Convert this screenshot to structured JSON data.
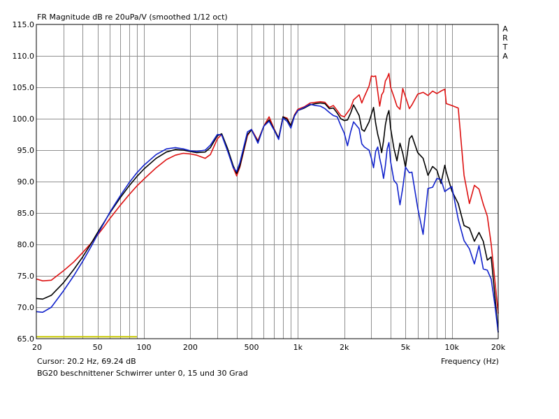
{
  "title": "FR Magnitude dB re 20uPa/V (smoothed 1/12 oct)",
  "watermark": [
    "A",
    "R",
    "T",
    "A"
  ],
  "cursor_text": "Cursor: 20.2 Hz, 69.24 dB",
  "caption": "BG20 beschnittener Schwirrer unter 0, 15 und 30 Grad",
  "chart_data": {
    "type": "line",
    "title": "FR Magnitude dB re 20uPa/V (smoothed 1/12 oct)",
    "xlabel": "Frequency (Hz)",
    "ylabel": "",
    "xscale": "log",
    "xlim": [
      20,
      20000
    ],
    "ylim": [
      65,
      115
    ],
    "grid": true,
    "x_ticks": [
      20,
      50,
      100,
      200,
      500,
      1000,
      2000,
      5000,
      10000,
      20000
    ],
    "x_tick_labels": [
      "20",
      "50",
      "100",
      "200",
      "500",
      "1k",
      "2k",
      "5k",
      "10k",
      "20k"
    ],
    "y_ticks": [
      65,
      70,
      75,
      80,
      85,
      90,
      95,
      100,
      105,
      110,
      115
    ],
    "y_tick_labels": [
      "65.0",
      "70.0",
      "75.0",
      "80.0",
      "85.0",
      "90.0",
      "95.0",
      "100.0",
      "105.0",
      "110.0",
      "115.0"
    ],
    "colors": {
      "red": "#dd1111",
      "black": "#000000",
      "blue": "#1122cc",
      "baseline": "#c8c800",
      "grid": "#909090"
    },
    "baseline_segment": {
      "x": [
        20,
        90
      ],
      "y": 65.3
    },
    "series": [
      {
        "color": "red",
        "points": [
          [
            20,
            74.5
          ],
          [
            22,
            74.2
          ],
          [
            25,
            74.3
          ],
          [
            30,
            75.8
          ],
          [
            35,
            77.2
          ],
          [
            40,
            78.7
          ],
          [
            45,
            80.1
          ],
          [
            50,
            81.5
          ],
          [
            55,
            82.8
          ],
          [
            60,
            84.1
          ],
          [
            70,
            86.2
          ],
          [
            80,
            87.9
          ],
          [
            90,
            89.3
          ],
          [
            100,
            90.4
          ],
          [
            120,
            92.2
          ],
          [
            140,
            93.5
          ],
          [
            160,
            94.2
          ],
          [
            180,
            94.5
          ],
          [
            200,
            94.4
          ],
          [
            220,
            94.2
          ],
          [
            250,
            93.7
          ],
          [
            270,
            94.3
          ],
          [
            300,
            96.8
          ],
          [
            320,
            97.5
          ],
          [
            350,
            95.0
          ],
          [
            380,
            92.2
          ],
          [
            400,
            90.9
          ],
          [
            420,
            92.3
          ],
          [
            470,
            97.3
          ],
          [
            500,
            98.3
          ],
          [
            550,
            96.5
          ],
          [
            600,
            98.8
          ],
          [
            650,
            100.3
          ],
          [
            700,
            98.4
          ],
          [
            750,
            96.9
          ],
          [
            800,
            100.3
          ],
          [
            850,
            100.1
          ],
          [
            900,
            98.9
          ],
          [
            950,
            100.6
          ],
          [
            1000,
            101.5
          ],
          [
            1100,
            101.9
          ],
          [
            1200,
            102.5
          ],
          [
            1300,
            102.6
          ],
          [
            1400,
            102.7
          ],
          [
            1500,
            102.6
          ],
          [
            1600,
            101.8
          ],
          [
            1700,
            102.1
          ],
          [
            1800,
            101.3
          ],
          [
            1900,
            100.5
          ],
          [
            2000,
            100.3
          ],
          [
            2100,
            101.0
          ],
          [
            2200,
            101.7
          ],
          [
            2300,
            103.0
          ],
          [
            2500,
            103.8
          ],
          [
            2600,
            102.5
          ],
          [
            2700,
            103.5
          ],
          [
            2900,
            105.2
          ],
          [
            3000,
            106.8
          ],
          [
            3100,
            106.7
          ],
          [
            3200,
            106.8
          ],
          [
            3300,
            104.3
          ],
          [
            3400,
            102.0
          ],
          [
            3500,
            103.8
          ],
          [
            3600,
            104.3
          ],
          [
            3700,
            106.0
          ],
          [
            3800,
            106.5
          ],
          [
            3900,
            107.2
          ],
          [
            4000,
            105.0
          ],
          [
            4200,
            103.5
          ],
          [
            4400,
            102.0
          ],
          [
            4600,
            101.5
          ],
          [
            4800,
            104.8
          ],
          [
            5000,
            103.5
          ],
          [
            5300,
            101.6
          ],
          [
            5500,
            102.2
          ],
          [
            6000,
            103.9
          ],
          [
            6500,
            104.2
          ],
          [
            7000,
            103.7
          ],
          [
            7500,
            104.4
          ],
          [
            8000,
            104.0
          ],
          [
            8500,
            104.4
          ],
          [
            9000,
            104.7
          ],
          [
            9200,
            102.4
          ],
          [
            10000,
            102.1
          ],
          [
            11000,
            101.7
          ],
          [
            12000,
            91.0
          ],
          [
            13000,
            86.5
          ],
          [
            14000,
            89.4
          ],
          [
            15000,
            88.8
          ],
          [
            16000,
            86.4
          ],
          [
            17000,
            84.5
          ],
          [
            18000,
            80.1
          ],
          [
            19000,
            74.4
          ],
          [
            20000,
            69.0
          ]
        ]
      },
      {
        "color": "black",
        "points": [
          [
            20,
            71.4
          ],
          [
            22,
            71.3
          ],
          [
            25,
            71.9
          ],
          [
            30,
            73.9
          ],
          [
            35,
            76.0
          ],
          [
            40,
            78.0
          ],
          [
            45,
            80.0
          ],
          [
            50,
            81.9
          ],
          [
            55,
            83.5
          ],
          [
            60,
            85.0
          ],
          [
            70,
            87.4
          ],
          [
            80,
            89.3
          ],
          [
            90,
            90.8
          ],
          [
            100,
            92.0
          ],
          [
            120,
            93.7
          ],
          [
            140,
            94.7
          ],
          [
            160,
            95.1
          ],
          [
            180,
            95.0
          ],
          [
            200,
            94.8
          ],
          [
            220,
            94.6
          ],
          [
            250,
            94.7
          ],
          [
            270,
            95.4
          ],
          [
            300,
            97.3
          ],
          [
            320,
            97.6
          ],
          [
            350,
            95.2
          ],
          [
            380,
            92.5
          ],
          [
            400,
            91.3
          ],
          [
            420,
            92.5
          ],
          [
            470,
            97.5
          ],
          [
            500,
            98.2
          ],
          [
            550,
            96.3
          ],
          [
            600,
            98.8
          ],
          [
            650,
            99.8
          ],
          [
            700,
            98.3
          ],
          [
            750,
            96.9
          ],
          [
            800,
            100.3
          ],
          [
            850,
            99.9
          ],
          [
            900,
            98.9
          ],
          [
            950,
            100.5
          ],
          [
            1000,
            101.3
          ],
          [
            1100,
            101.7
          ],
          [
            1200,
            102.2
          ],
          [
            1300,
            102.4
          ],
          [
            1400,
            102.5
          ],
          [
            1500,
            102.4
          ],
          [
            1600,
            101.6
          ],
          [
            1700,
            101.7
          ],
          [
            1800,
            100.9
          ],
          [
            1900,
            100.0
          ],
          [
            2000,
            99.7
          ],
          [
            2100,
            99.8
          ],
          [
            2200,
            100.9
          ],
          [
            2300,
            102.2
          ],
          [
            2500,
            100.5
          ],
          [
            2600,
            98.3
          ],
          [
            2700,
            98.0
          ],
          [
            2900,
            99.5
          ],
          [
            3000,
            100.7
          ],
          [
            3100,
            101.8
          ],
          [
            3200,
            99.3
          ],
          [
            3300,
            97.5
          ],
          [
            3400,
            96.3
          ],
          [
            3500,
            94.6
          ],
          [
            3600,
            96.5
          ],
          [
            3700,
            99.0
          ],
          [
            3800,
            100.5
          ],
          [
            3900,
            101.3
          ],
          [
            4000,
            98.5
          ],
          [
            4200,
            95.3
          ],
          [
            4400,
            93.3
          ],
          [
            4600,
            96.1
          ],
          [
            4800,
            94.5
          ],
          [
            5000,
            92.3
          ],
          [
            5300,
            96.8
          ],
          [
            5500,
            97.3
          ],
          [
            6000,
            94.6
          ],
          [
            6500,
            93.7
          ],
          [
            7000,
            91.0
          ],
          [
            7500,
            92.4
          ],
          [
            8000,
            91.8
          ],
          [
            8500,
            89.7
          ],
          [
            9000,
            92.6
          ],
          [
            9200,
            91.5
          ],
          [
            10000,
            88.5
          ],
          [
            11000,
            86.5
          ],
          [
            12000,
            83.0
          ],
          [
            13000,
            82.6
          ],
          [
            14000,
            80.5
          ],
          [
            15000,
            81.9
          ],
          [
            16000,
            80.5
          ],
          [
            17000,
            77.5
          ],
          [
            18000,
            78.0
          ],
          [
            19000,
            72.0
          ],
          [
            20000,
            66.0
          ]
        ]
      },
      {
        "color": "blue",
        "points": [
          [
            20,
            69.3
          ],
          [
            22,
            69.2
          ],
          [
            25,
            70.0
          ],
          [
            30,
            72.6
          ],
          [
            35,
            75.0
          ],
          [
            40,
            77.3
          ],
          [
            45,
            79.5
          ],
          [
            50,
            81.6
          ],
          [
            55,
            83.4
          ],
          [
            60,
            85.1
          ],
          [
            70,
            87.7
          ],
          [
            80,
            89.8
          ],
          [
            90,
            91.4
          ],
          [
            100,
            92.6
          ],
          [
            120,
            94.3
          ],
          [
            140,
            95.2
          ],
          [
            160,
            95.4
          ],
          [
            180,
            95.2
          ],
          [
            200,
            94.9
          ],
          [
            220,
            94.8
          ],
          [
            250,
            95.0
          ],
          [
            270,
            95.8
          ],
          [
            300,
            97.5
          ],
          [
            320,
            97.4
          ],
          [
            350,
            94.8
          ],
          [
            380,
            92.2
          ],
          [
            400,
            91.6
          ],
          [
            420,
            93.0
          ],
          [
            470,
            97.9
          ],
          [
            500,
            98.3
          ],
          [
            550,
            96.1
          ],
          [
            600,
            98.8
          ],
          [
            650,
            99.6
          ],
          [
            700,
            98.2
          ],
          [
            750,
            96.7
          ],
          [
            800,
            100.1
          ],
          [
            850,
            99.6
          ],
          [
            900,
            98.5
          ],
          [
            950,
            100.4
          ],
          [
            1000,
            101.3
          ],
          [
            1100,
            101.8
          ],
          [
            1200,
            102.3
          ],
          [
            1300,
            102.1
          ],
          [
            1400,
            102.0
          ],
          [
            1500,
            101.6
          ],
          [
            1600,
            101.0
          ],
          [
            1700,
            100.5
          ],
          [
            1800,
            100.3
          ],
          [
            1900,
            98.9
          ],
          [
            2000,
            97.7
          ],
          [
            2100,
            95.7
          ],
          [
            2200,
            97.9
          ],
          [
            2300,
            99.5
          ],
          [
            2500,
            98.4
          ],
          [
            2600,
            96.0
          ],
          [
            2700,
            95.5
          ],
          [
            2900,
            95.0
          ],
          [
            3000,
            93.7
          ],
          [
            3100,
            92.2
          ],
          [
            3200,
            94.8
          ],
          [
            3300,
            95.5
          ],
          [
            3400,
            93.7
          ],
          [
            3500,
            92.3
          ],
          [
            3600,
            90.5
          ],
          [
            3700,
            92.5
          ],
          [
            3800,
            95.2
          ],
          [
            3900,
            96.2
          ],
          [
            4000,
            93.2
          ],
          [
            4200,
            90.2
          ],
          [
            4400,
            89.6
          ],
          [
            4600,
            86.3
          ],
          [
            4800,
            89.0
          ],
          [
            5000,
            92.3
          ],
          [
            5300,
            91.4
          ],
          [
            5500,
            91.5
          ],
          [
            6000,
            85.8
          ],
          [
            6500,
            81.6
          ],
          [
            7000,
            88.9
          ],
          [
            7500,
            89.1
          ],
          [
            8000,
            90.5
          ],
          [
            8500,
            90.3
          ],
          [
            9000,
            88.4
          ],
          [
            9200,
            88.6
          ],
          [
            10000,
            89.2
          ],
          [
            11000,
            84.0
          ],
          [
            12000,
            80.6
          ],
          [
            13000,
            79.3
          ],
          [
            14000,
            76.9
          ],
          [
            15000,
            79.8
          ],
          [
            16000,
            76.1
          ],
          [
            17000,
            75.9
          ],
          [
            18000,
            74.5
          ],
          [
            19000,
            70.5
          ],
          [
            20000,
            66.0
          ]
        ]
      }
    ]
  }
}
